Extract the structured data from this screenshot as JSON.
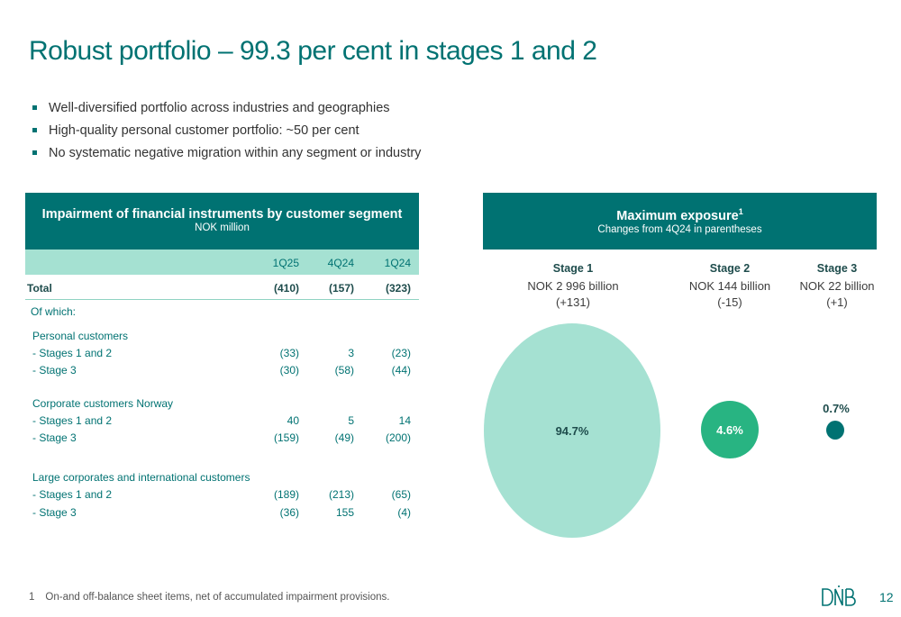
{
  "title": "Robust portfolio – 99.3 per cent in stages 1 and 2",
  "bullets": [
    "Well-diversified portfolio across industries and geographies",
    "High-quality personal customer portfolio: ~50 per cent",
    "No systematic negative migration within any segment or industry"
  ],
  "table": {
    "title": "Impairment of financial instruments by customer segment",
    "subtitle": "NOK million",
    "columns": [
      "1Q25",
      "4Q24",
      "1Q24"
    ],
    "total": {
      "label": "Total",
      "values": [
        "(410)",
        "(157)",
        "(323)"
      ]
    },
    "of_which": "Of which:",
    "sections": [
      {
        "name": "Personal customers",
        "rows": [
          {
            "label": "- Stages 1 and 2",
            "values": [
              "(33)",
              "3",
              "(23)"
            ]
          },
          {
            "label": "- Stage 3",
            "values": [
              "(30)",
              "(58)",
              "(44)"
            ]
          }
        ]
      },
      {
        "name": "Corporate customers Norway",
        "rows": [
          {
            "label": "- Stages 1 and 2",
            "values": [
              "40",
              "5",
              "14"
            ]
          },
          {
            "label": "- Stage 3",
            "values": [
              "(159)",
              "(49)",
              "(200)"
            ]
          }
        ]
      },
      {
        "name": "Large corporates and international customers",
        "rows": [
          {
            "label": "- Stages 1 and 2",
            "values": [
              "(189)",
              "(213)",
              "(65)"
            ]
          },
          {
            "label": "- Stage 3",
            "values": [
              "(36)",
              "155",
              "(4)"
            ]
          }
        ]
      }
    ]
  },
  "exposure": {
    "title": "Maximum exposure",
    "title_sup": "1",
    "subtitle": "Changes from 4Q24 in parentheses",
    "stages": [
      {
        "name": "Stage 1",
        "value": "NOK 2 996 billion",
        "change": "(+131)",
        "share_label": "94.7%",
        "share": 94.7,
        "color": "#a5e1d2"
      },
      {
        "name": "Stage 2",
        "value": "NOK 144 billion",
        "change": "(-15)",
        "share_label": "4.6%",
        "share": 4.6,
        "color": "#28b482"
      },
      {
        "name": "Stage 3",
        "value": "NOK 22 billion",
        "change": "(+1)",
        "share_label": "0.7%",
        "share": 0.7,
        "color": "#007272"
      }
    ]
  },
  "footnote": {
    "number": "1",
    "text": "On-and off-balance sheet items, net of accumulated impairment provisions."
  },
  "logo": "DNB",
  "page_number": "12"
}
